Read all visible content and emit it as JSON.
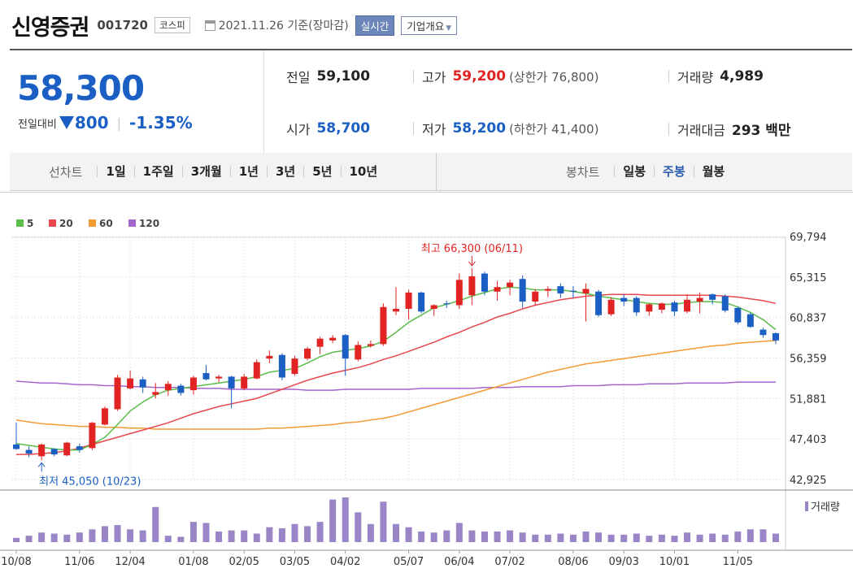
{
  "stock": {
    "name": "신영증권",
    "code": "001720",
    "market": "코스피",
    "date": "2021.11.26 기준(장마감)",
    "realtime": "실시간",
    "company_info": "기업개요"
  },
  "quote": {
    "price": "58,300",
    "change_label": "전일대비",
    "change": "800",
    "change_pct": "-1.35%",
    "prev_close_label": "전일",
    "prev_close": "59,100",
    "high_label": "고가",
    "high": "59,200",
    "upper_limit": "(상한가 76,800)",
    "volume_label": "거래량",
    "volume": "4,989",
    "open_label": "시가",
    "open": "58,700",
    "low_label": "저가",
    "low": "58,200",
    "lower_limit": "(하한가 41,400)",
    "amount_label": "거래대금",
    "amount": "293 백만"
  },
  "periods": {
    "line_label": "선차트",
    "line_items": [
      "1일",
      "1주일",
      "3개월",
      "1년",
      "3년",
      "5년",
      "10년"
    ],
    "candle_label": "봉차트",
    "candle_items": [
      "일봉",
      "주봉",
      "월봉"
    ],
    "candle_active": "주봉"
  },
  "colors": {
    "up": "#e22323",
    "down": "#1b5fc4",
    "ma5": "#5bbd4a",
    "ma20": "#e8474e",
    "ma60": "#f29a34",
    "ma120": "#a566cc",
    "volume": "#9a86c6"
  },
  "chart_data": {
    "type": "candlestick",
    "interval": "weekly",
    "ylim": [
      42925,
      69794
    ],
    "yticks": [
      "69,794",
      "65,315",
      "60,837",
      "56,359",
      "51,881",
      "47,403",
      "42,925"
    ],
    "xticks": [
      "10/08",
      "11/06",
      "12/04",
      "01/08",
      "02/05",
      "03/05",
      "04/02",
      "05/07",
      "06/04",
      "07/02",
      "08/06",
      "09/03",
      "10/01",
      "11/05"
    ],
    "xtick_index": [
      0,
      5,
      9,
      14,
      18,
      22,
      26,
      31,
      35,
      39,
      44,
      48,
      52,
      57
    ],
    "legend": [
      {
        "label": "5",
        "color": "#5bbd4a"
      },
      {
        "label": "20",
        "color": "#e8474e"
      },
      {
        "label": "60",
        "color": "#f29a34"
      },
      {
        "label": "120",
        "color": "#a566cc"
      }
    ],
    "high_annotation": "최고 66,300 (06/11)",
    "low_annotation": "최저 45,050 (10/23)",
    "volume_label": "거래량",
    "candles": [
      {
        "o": 46800,
        "h": 49200,
        "l": 46200,
        "c": 46300
      },
      {
        "o": 46200,
        "h": 46600,
        "l": 45400,
        "c": 45800
      },
      {
        "o": 45500,
        "h": 46900,
        "l": 45050,
        "c": 46800
      },
      {
        "o": 46300,
        "h": 46400,
        "l": 45500,
        "c": 45700
      },
      {
        "o": 45600,
        "h": 47100,
        "l": 45500,
        "c": 47000
      },
      {
        "o": 46600,
        "h": 46900,
        "l": 45900,
        "c": 46200
      },
      {
        "o": 46400,
        "h": 49300,
        "l": 46200,
        "c": 49200
      },
      {
        "o": 49000,
        "h": 51000,
        "l": 48900,
        "c": 50800
      },
      {
        "o": 50700,
        "h": 54500,
        "l": 50500,
        "c": 54200
      },
      {
        "o": 53000,
        "h": 55000,
        "l": 52900,
        "c": 54100
      },
      {
        "o": 54000,
        "h": 54300,
        "l": 52500,
        "c": 53100
      },
      {
        "o": 52300,
        "h": 53600,
        "l": 51900,
        "c": 52600
      },
      {
        "o": 52800,
        "h": 53800,
        "l": 52200,
        "c": 53500
      },
      {
        "o": 53300,
        "h": 53500,
        "l": 52200,
        "c": 52500
      },
      {
        "o": 52800,
        "h": 54400,
        "l": 52300,
        "c": 54200
      },
      {
        "o": 54700,
        "h": 55600,
        "l": 53900,
        "c": 54000
      },
      {
        "o": 54100,
        "h": 54500,
        "l": 53700,
        "c": 54300
      },
      {
        "o": 54300,
        "h": 54400,
        "l": 50800,
        "c": 53000
      },
      {
        "o": 53000,
        "h": 54600,
        "l": 52800,
        "c": 54300
      },
      {
        "o": 54100,
        "h": 56200,
        "l": 54000,
        "c": 55900
      },
      {
        "o": 56300,
        "h": 57200,
        "l": 55800,
        "c": 56600
      },
      {
        "o": 56700,
        "h": 56900,
        "l": 53900,
        "c": 54200
      },
      {
        "o": 54600,
        "h": 56600,
        "l": 54400,
        "c": 56300
      },
      {
        "o": 56300,
        "h": 57600,
        "l": 56100,
        "c": 57400
      },
      {
        "o": 57600,
        "h": 58700,
        "l": 56800,
        "c": 58500
      },
      {
        "o": 58300,
        "h": 58900,
        "l": 58000,
        "c": 58600
      },
      {
        "o": 58900,
        "h": 59000,
        "l": 54400,
        "c": 56300
      },
      {
        "o": 56200,
        "h": 58200,
        "l": 56000,
        "c": 57800
      },
      {
        "o": 57700,
        "h": 58300,
        "l": 57500,
        "c": 57900
      },
      {
        "o": 57900,
        "h": 62400,
        "l": 57700,
        "c": 62000
      },
      {
        "o": 61500,
        "h": 64200,
        "l": 61100,
        "c": 61800
      },
      {
        "o": 61800,
        "h": 63900,
        "l": 60600,
        "c": 63600
      },
      {
        "o": 63600,
        "h": 63700,
        "l": 61300,
        "c": 61500
      },
      {
        "o": 61800,
        "h": 62300,
        "l": 61000,
        "c": 62200
      },
      {
        "o": 62400,
        "h": 62700,
        "l": 61900,
        "c": 62300
      },
      {
        "o": 62200,
        "h": 65700,
        "l": 61800,
        "c": 65000
      },
      {
        "o": 63300,
        "h": 66300,
        "l": 62200,
        "c": 65400
      },
      {
        "o": 65700,
        "h": 65900,
        "l": 63300,
        "c": 63700
      },
      {
        "o": 63700,
        "h": 64900,
        "l": 62700,
        "c": 64200
      },
      {
        "o": 64200,
        "h": 65000,
        "l": 63300,
        "c": 64700
      },
      {
        "o": 65100,
        "h": 65500,
        "l": 61900,
        "c": 62600
      },
      {
        "o": 62600,
        "h": 64000,
        "l": 62200,
        "c": 63700
      },
      {
        "o": 63800,
        "h": 64300,
        "l": 63100,
        "c": 64000
      },
      {
        "o": 64300,
        "h": 64600,
        "l": 63000,
        "c": 63500
      },
      {
        "o": 63800,
        "h": 64300,
        "l": 63000,
        "c": 63700
      },
      {
        "o": 63500,
        "h": 64600,
        "l": 60400,
        "c": 64000
      },
      {
        "o": 63700,
        "h": 63900,
        "l": 60900,
        "c": 61100
      },
      {
        "o": 61200,
        "h": 63100,
        "l": 61000,
        "c": 62800
      },
      {
        "o": 63000,
        "h": 63400,
        "l": 62100,
        "c": 62600
      },
      {
        "o": 63000,
        "h": 63200,
        "l": 61000,
        "c": 61400
      },
      {
        "o": 61500,
        "h": 62400,
        "l": 61000,
        "c": 62300
      },
      {
        "o": 61700,
        "h": 62500,
        "l": 61300,
        "c": 62400
      },
      {
        "o": 62500,
        "h": 62700,
        "l": 61000,
        "c": 61500
      },
      {
        "o": 61500,
        "h": 63400,
        "l": 61300,
        "c": 62800
      },
      {
        "o": 62600,
        "h": 63600,
        "l": 61300,
        "c": 63000
      },
      {
        "o": 63400,
        "h": 63500,
        "l": 62300,
        "c": 62800
      },
      {
        "o": 63200,
        "h": 63400,
        "l": 61400,
        "c": 61600
      },
      {
        "o": 61900,
        "h": 62000,
        "l": 60100,
        "c": 60300
      },
      {
        "o": 61200,
        "h": 61400,
        "l": 59700,
        "c": 59800
      },
      {
        "o": 59500,
        "h": 59700,
        "l": 58600,
        "c": 58900
      },
      {
        "o": 59100,
        "h": 59200,
        "l": 57900,
        "c": 58300
      }
    ],
    "ma5": [
      46900,
      46700,
      46500,
      46300,
      46200,
      46200,
      46800,
      47600,
      49000,
      50500,
      51500,
      52300,
      52800,
      53000,
      53200,
      53400,
      53600,
      53800,
      54000,
      54300,
      54800,
      55000,
      55200,
      55800,
      56500,
      57000,
      57200,
      57400,
      57700,
      58200,
      59200,
      60300,
      61100,
      61900,
      62300,
      62700,
      63200,
      63600,
      64000,
      64200,
      64100,
      63900,
      63900,
      63900,
      63700,
      63500,
      63200,
      63000,
      62800,
      62600,
      62400,
      62300,
      62300,
      62500,
      62600,
      62600,
      62500,
      62000,
      61400,
      60600,
      59500
    ],
    "ma20": [
      45700,
      45700,
      45800,
      45900,
      46100,
      46400,
      46800,
      47200,
      47600,
      48000,
      48400,
      48800,
      49200,
      49700,
      50200,
      50600,
      51000,
      51300,
      51600,
      51900,
      52400,
      52900,
      53400,
      53900,
      54300,
      54700,
      55000,
      55300,
      55700,
      56200,
      56600,
      57100,
      57600,
      58100,
      58700,
      59200,
      59800,
      60300,
      60900,
      61300,
      61800,
      62200,
      62500,
      62800,
      63000,
      63200,
      63300,
      63400,
      63400,
      63400,
      63300,
      63300,
      63300,
      63300,
      63300,
      63300,
      63200,
      63100,
      62900,
      62700,
      62400
    ],
    "ma60": [
      49500,
      49300,
      49100,
      49000,
      48900,
      48800,
      48800,
      48700,
      48700,
      48600,
      48600,
      48500,
      48500,
      48500,
      48500,
      48500,
      48500,
      48500,
      48500,
      48500,
      48600,
      48600,
      48700,
      48800,
      48900,
      49000,
      49200,
      49300,
      49500,
      49700,
      50000,
      50400,
      50800,
      51200,
      51600,
      52000,
      52400,
      52800,
      53200,
      53600,
      54000,
      54400,
      54800,
      55100,
      55400,
      55700,
      55900,
      56100,
      56300,
      56500,
      56700,
      56900,
      57100,
      57300,
      57500,
      57700,
      57800,
      58000,
      58100,
      58200,
      58300
    ],
    "ma120": [
      53800,
      53700,
      53600,
      53600,
      53500,
      53400,
      53400,
      53300,
      53300,
      53200,
      53200,
      53100,
      53100,
      53100,
      53000,
      53000,
      53000,
      52900,
      52900,
      52900,
      52900,
      52900,
      52900,
      52800,
      52800,
      52800,
      52900,
      52900,
      52900,
      52900,
      52900,
      52900,
      53000,
      53000,
      53000,
      53000,
      53000,
      53100,
      53100,
      53100,
      53200,
      53200,
      53200,
      53200,
      53300,
      53300,
      53300,
      53400,
      53400,
      53400,
      53500,
      53500,
      53500,
      53600,
      53600,
      53600,
      53600,
      53700,
      53700,
      53700,
      53700
    ],
    "volume": [
      4,
      6,
      9,
      8,
      7,
      9,
      12,
      15,
      16,
      12,
      11,
      33,
      6,
      5,
      19,
      18,
      10,
      11,
      11,
      8,
      14,
      13,
      17,
      15,
      19,
      40,
      42,
      28,
      17,
      38,
      17,
      14,
      10,
      9,
      11,
      18,
      11,
      10,
      10,
      11,
      9,
      7,
      7,
      8,
      7,
      10,
      9,
      7,
      7,
      8,
      6,
      7,
      6,
      9,
      7,
      8,
      7,
      10,
      12,
      12,
      8
    ]
  }
}
